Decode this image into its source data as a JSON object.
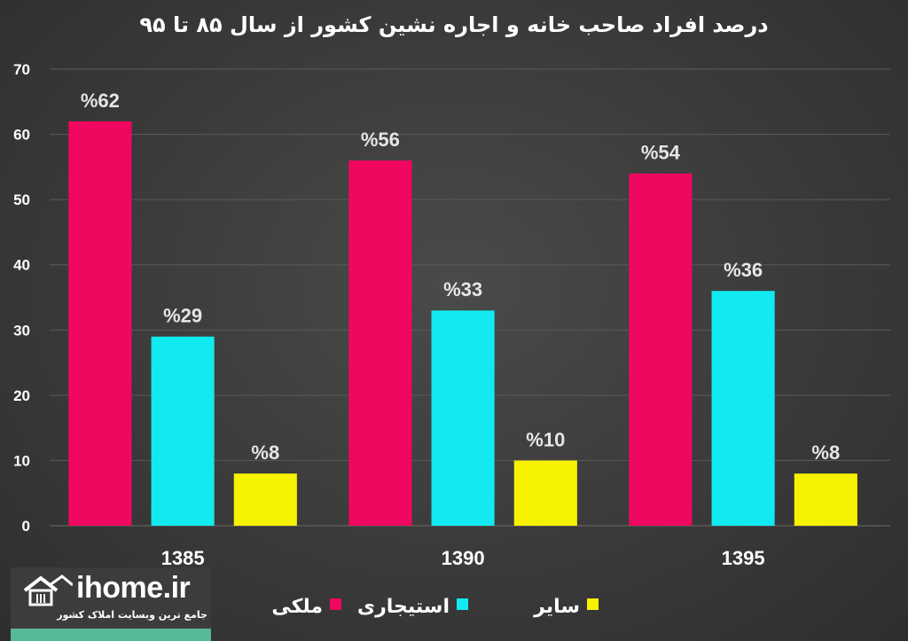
{
  "chart_data": {
    "type": "bar",
    "title": "درصد افراد صاحب خانه و اجاره نشین کشور از سال ۸۵ تا ۹۵",
    "categories": [
      "1385",
      "1390",
      "1395"
    ],
    "series": [
      {
        "name": "ملکی",
        "values": [
          62,
          56,
          54
        ],
        "labels": [
          "%62",
          "%56",
          "%54"
        ],
        "color": "#f0075f"
      },
      {
        "name": "استیجاری",
        "values": [
          29,
          33,
          36
        ],
        "labels": [
          "%29",
          "%33",
          "%36"
        ],
        "color": "#11eaf0"
      },
      {
        "name": "سایر",
        "values": [
          8,
          10,
          8
        ],
        "labels": [
          "%8",
          "%10",
          "%8"
        ],
        "color": "#f7f200"
      }
    ],
    "ylim": [
      0,
      70
    ],
    "yticks": [
      "0",
      "10",
      "20",
      "30",
      "40",
      "50",
      "60",
      "70"
    ],
    "grid": true,
    "legend_position": "bottom"
  },
  "branding": {
    "logo_name": "ihome.ir",
    "tagline": "جامع ترین وبسایت املاک کشور"
  },
  "colors": {
    "background": "#3a3a3a",
    "gridline": "#5a5a5a",
    "logo_accent": "#57b89a"
  },
  "icons": {
    "logo": "house-icon"
  }
}
